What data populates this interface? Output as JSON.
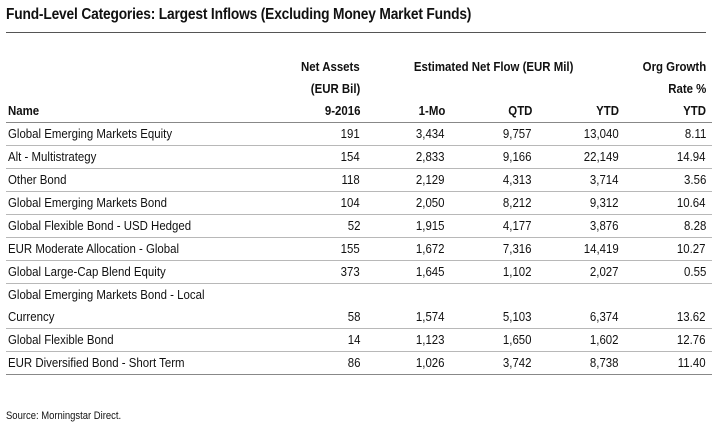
{
  "chart_data": {
    "type": "table",
    "title": "Fund-Level Categories: Largest Inflows (Excluding Money Market Funds)",
    "header": {
      "net_assets_line1": "Net Assets",
      "net_assets_line2": "(EUR Bil)",
      "flow_group": "Estimated Net Flow (EUR Mil)",
      "org_line1": "Org Growth",
      "org_line2": "Rate %"
    },
    "columns": [
      "Name",
      "9-2016",
      "1-Mo",
      "QTD",
      "YTD",
      "YTD"
    ],
    "rows": [
      {
        "name": "Global Emerging Markets Equity",
        "assets": "191",
        "mo": "3,434",
        "qtd": "9,757",
        "ytd": "13,040",
        "org": "8.11"
      },
      {
        "name": "Alt - Multistrategy",
        "assets": "154",
        "mo": "2,833",
        "qtd": "9,166",
        "ytd": "22,149",
        "org": "14.94"
      },
      {
        "name": "Other Bond",
        "assets": "118",
        "mo": "2,129",
        "qtd": "4,313",
        "ytd": "3,714",
        "org": "3.56"
      },
      {
        "name": "Global Emerging Markets Bond",
        "assets": "104",
        "mo": "2,050",
        "qtd": "8,212",
        "ytd": "9,312",
        "org": "10.64"
      },
      {
        "name": "Global Flexible Bond - USD Hedged",
        "assets": "52",
        "mo": "1,915",
        "qtd": "4,177",
        "ytd": "3,876",
        "org": "8.28"
      },
      {
        "name": "EUR Moderate Allocation - Global",
        "assets": "155",
        "mo": "1,672",
        "qtd": "7,316",
        "ytd": "14,419",
        "org": "10.27"
      },
      {
        "name": "Global Large-Cap Blend Equity",
        "assets": "373",
        "mo": "1,645",
        "qtd": "1,102",
        "ytd": "2,027",
        "org": "0.55"
      },
      {
        "name_line1": "Global Emerging Markets Bond - Local",
        "name": "Currency",
        "assets": "58",
        "mo": "1,574",
        "qtd": "5,103",
        "ytd": "6,374",
        "org": "13.62"
      },
      {
        "name": "Global Flexible Bond",
        "assets": "14",
        "mo": "1,123",
        "qtd": "1,650",
        "ytd": "1,602",
        "org": "12.76"
      },
      {
        "name": "EUR Diversified Bond - Short Term",
        "assets": "86",
        "mo": "1,026",
        "qtd": "3,742",
        "ytd": "8,738",
        "org": "11.40"
      }
    ],
    "source": "Source: Morningstar Direct."
  }
}
